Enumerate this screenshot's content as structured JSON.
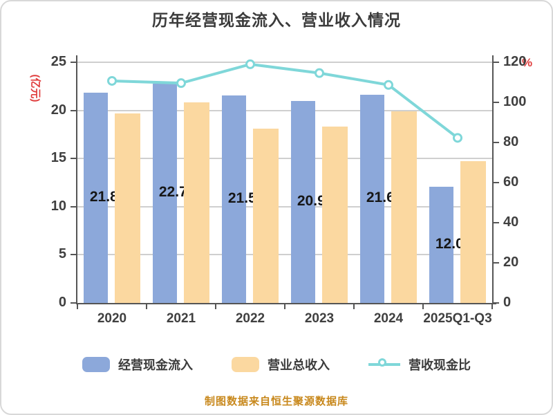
{
  "title": "历年经营现金流入、营业收入情况",
  "footer": "制图数据来自恒生聚源数据库",
  "colors": {
    "bar_cash": "#8CA8DA",
    "bar_revenue": "#FBD8A0",
    "line_ratio": "#7FD7D9",
    "axis_red": "#E03C3C",
    "axis_text": "#3F3F3F",
    "axis_line": "#555555",
    "grid": "#CFCFCF",
    "title_text": "#3B3B3B",
    "footer_text": "#C8881C"
  },
  "left_axis": {
    "name": "(亿元)",
    "ticks": [
      0,
      5,
      10,
      15,
      20,
      25
    ],
    "max": 25
  },
  "right_axis": {
    "name": "%",
    "ticks": [
      0,
      20,
      40,
      60,
      80,
      100,
      120
    ],
    "max": 120
  },
  "legend": [
    {
      "label": "经营现金流入",
      "marker": "bar-swatch-blue"
    },
    {
      "label": "营业总收入",
      "marker": "bar-swatch-orange"
    },
    {
      "label": "营收现金比",
      "marker": "line-with-circle"
    }
  ],
  "chart_data": {
    "type": "bar",
    "subtype": "grouped bars + line on secondary axis",
    "categories": [
      "2020",
      "2021",
      "2022",
      "2023",
      "2024",
      "2025Q1-Q3"
    ],
    "series": [
      {
        "name": "经营现金流入",
        "type": "bar",
        "axis": "left",
        "values": [
          21.815,
          22.791,
          21.546,
          20.971,
          21.636,
          12.095
        ],
        "labels": [
          "21.815",
          "22.791",
          "21.546",
          "20.971",
          "21.636",
          "12.095"
        ]
      },
      {
        "name": "营业总收入",
        "type": "bar",
        "axis": "left",
        "values": [
          19.7,
          20.8,
          18.1,
          18.3,
          19.9,
          14.7
        ]
      },
      {
        "name": "营收现金比",
        "type": "line",
        "axis": "right",
        "values": [
          110.7,
          109.6,
          119.0,
          114.6,
          108.7,
          82.3
        ]
      }
    ],
    "left_ylim": [
      0,
      25
    ],
    "right_ylim": [
      0,
      120
    ],
    "left_ylabel": "(亿元)",
    "right_ylabel": "%",
    "grid": true,
    "legend_position": "bottom"
  }
}
